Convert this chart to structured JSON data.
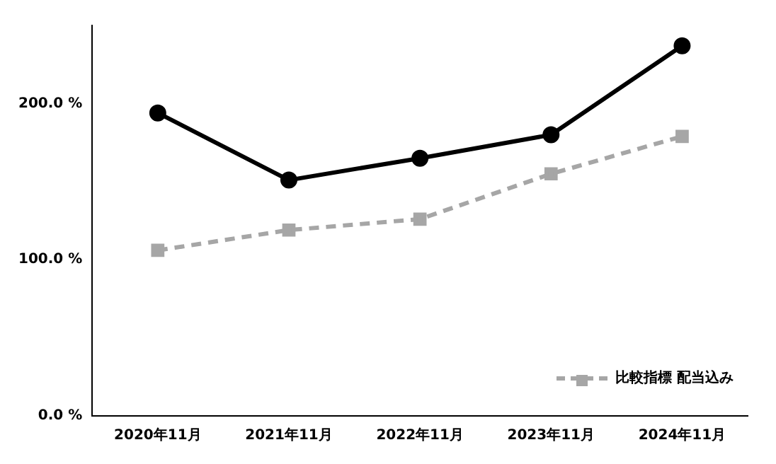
{
  "chart_data": {
    "type": "line",
    "categories": [
      "2020年11月",
      "2021年11月",
      "2022年11月",
      "2023年11月",
      "2024年11月"
    ],
    "series": [
      {
        "color": "#000000",
        "values": [
          194,
          151,
          165,
          180,
          237
        ],
        "marker": "circle",
        "line_style": "solid"
      },
      {
        "name": "比較指標 配当込み",
        "color": "#a6a6a6",
        "values": [
          106,
          119,
          126,
          155,
          179
        ],
        "marker": "square",
        "line_style": "dashed"
      }
    ],
    "ylim": [
      0,
      250
    ],
    "yticks": [
      {
        "value": 0,
        "label": "0.0 %"
      },
      {
        "value": 100,
        "label": "100.0 %"
      },
      {
        "value": 200,
        "label": "200.0 %"
      }
    ],
    "grid": false,
    "legend": "bottom right"
  }
}
